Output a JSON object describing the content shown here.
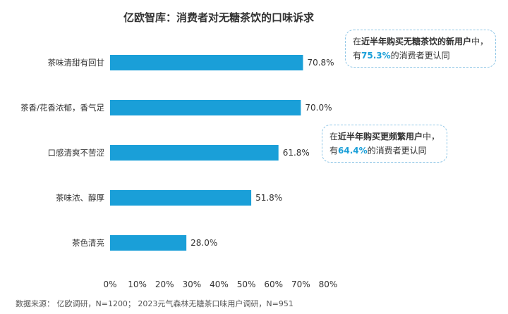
{
  "chart_data": {
    "type": "bar",
    "orientation": "horizontal",
    "title": "亿欧智库：消费者对无糖茶饮的口味诉求",
    "categories": [
      "茶味清甜有回甘",
      "茶香/花香浓郁，香气足",
      "口感清爽不苦涩",
      "茶味浓、醇厚",
      "茶色清亮"
    ],
    "values": [
      70.8,
      70.0,
      61.8,
      51.8,
      28.0
    ],
    "value_labels": [
      "70.8%",
      "70.0%",
      "61.8%",
      "51.8%",
      "28.0%"
    ],
    "xlim": [
      0,
      80
    ],
    "x_ticks": [
      "0%",
      "10%",
      "20%",
      "30%",
      "40%",
      "50%",
      "60%",
      "70%",
      "80%"
    ],
    "grid": false,
    "bar_color": "#1a9fd8"
  },
  "callouts": [
    {
      "line1_pre": "在",
      "line1_bold": "近半年购买无糖茶饮的新用户",
      "line1_post": "中，",
      "line2_pre": "有",
      "line2_pct": "75.3%",
      "line2_post": "的消费者更认同"
    },
    {
      "line1_pre": "在",
      "line1_bold": "近半年购买更频繁用户",
      "line1_post": "中，",
      "line2_pre": "有",
      "line2_pct": "64.4%",
      "line2_post": "的消费者更认同"
    }
  ],
  "source_note": "数据来源： 亿欧调研，N=1200； 2023元气森林无糖茶口味用户调研，N=951"
}
